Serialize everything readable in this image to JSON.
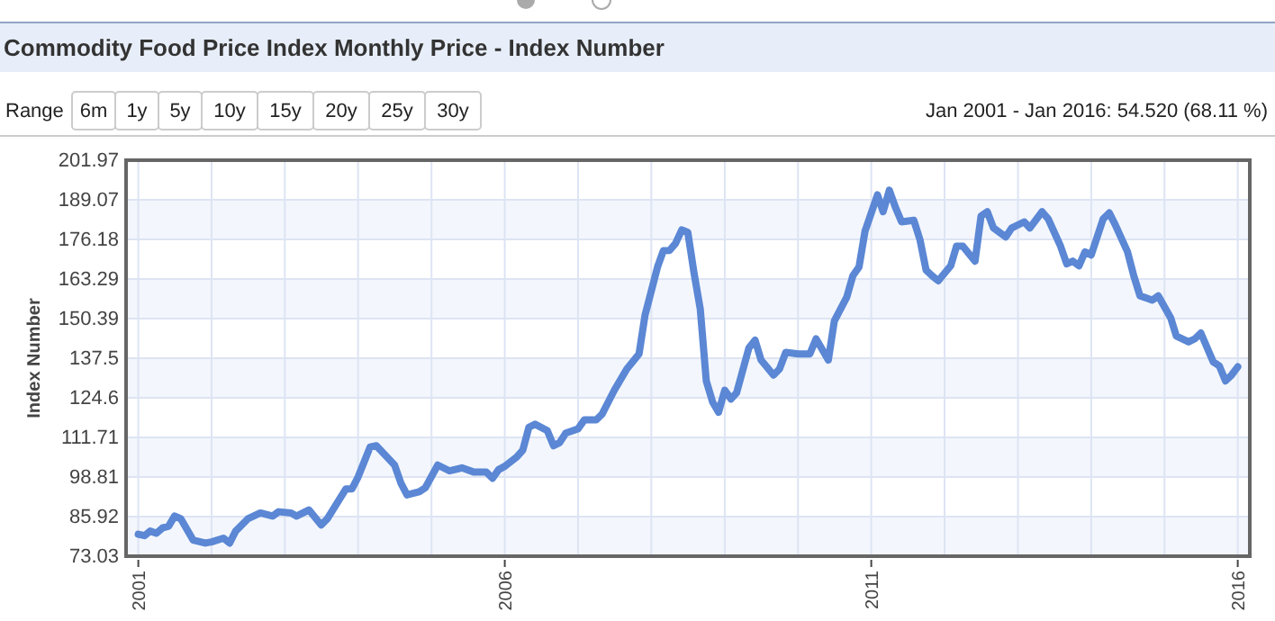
{
  "chart_data": {
    "type": "line",
    "title": "Commodity Food Price Index Monthly Price - Index Number",
    "subtitle": "Jan 2001 - Jan 2016: 54.520 (68.11 %)",
    "ylabel": "Index Number",
    "annotations": [
      "Range",
      "6m",
      "1y",
      "5y",
      "10y",
      "15y",
      "20y",
      "25y",
      "30y"
    ],
    "xlim": [
      "2000-11",
      "2016-03"
    ],
    "xticks": [
      {
        "value": "2001",
        "label": "2001"
      },
      {
        "value": "2002",
        "label": null
      },
      {
        "value": "2003",
        "label": null
      },
      {
        "value": "2004",
        "label": null
      },
      {
        "value": "2005",
        "label": null
      },
      {
        "value": "2006",
        "label": "2006"
      },
      {
        "value": "2007",
        "label": null
      },
      {
        "value": "2008",
        "label": null
      },
      {
        "value": "2009",
        "label": null
      },
      {
        "value": "2010",
        "label": null
      },
      {
        "value": "2011",
        "label": "2011"
      },
      {
        "value": "2012",
        "label": null
      },
      {
        "value": "2013",
        "label": null
      },
      {
        "value": "2014",
        "label": null
      },
      {
        "value": "2015",
        "label": null
      },
      {
        "value": "2016",
        "label": "2016"
      }
    ],
    "ylim": [
      73.03,
      201.97
    ],
    "yticks": [
      73.03,
      85.92,
      98.81,
      111.71,
      124.6,
      137.5,
      150.39,
      163.29,
      176.18,
      189.07,
      201.97
    ],
    "grid": true,
    "marker": "none",
    "line_style": "solid",
    "series": [
      {
        "color": "#5b87d4",
        "x": [
          "2001-01",
          "2001-02",
          "2001-03",
          "2001-04",
          "2001-05",
          "2001-06",
          "2001-07",
          "2001-08",
          "2001-10",
          "2001-12",
          "2002-01",
          "2002-03",
          "2002-04",
          "2002-05",
          "2002-07",
          "2002-09",
          "2002-11",
          "2002-12",
          "2003-02",
          "2003-03",
          "2003-05",
          "2003-07",
          "2003-08",
          "2003-11",
          "2003-12",
          "2004-01",
          "2004-03",
          "2004-04",
          "2004-07",
          "2004-08",
          "2004-09",
          "2004-11",
          "2004-12",
          "2005-02",
          "2005-04",
          "2005-06",
          "2005-08",
          "2005-10",
          "2005-11",
          "2005-12",
          "2006-01",
          "2006-03",
          "2006-04",
          "2006-05",
          "2006-06",
          "2006-08",
          "2006-09",
          "2006-10",
          "2006-11",
          "2007-01",
          "2007-02",
          "2007-04",
          "2007-05",
          "2007-06",
          "2007-07",
          "2007-09",
          "2007-11",
          "2007-12",
          "2008-02",
          "2008-03",
          "2008-04",
          "2008-05",
          "2008-06",
          "2008-07",
          "2008-08",
          "2008-09",
          "2008-10",
          "2008-11",
          "2008-12",
          "2009-01",
          "2009-02",
          "2009-03",
          "2009-05",
          "2009-06",
          "2009-07",
          "2009-09",
          "2009-10",
          "2009-11",
          "2010-01",
          "2010-03",
          "2010-04",
          "2010-06",
          "2010-07",
          "2010-09",
          "2010-10",
          "2010-11",
          "2010-12",
          "2011-01",
          "2011-02",
          "2011-03",
          "2011-04",
          "2011-05",
          "2011-06",
          "2011-08",
          "2011-09",
          "2011-10",
          "2011-11",
          "2011-12",
          "2012-02",
          "2012-03",
          "2012-04",
          "2012-06",
          "2012-07",
          "2012-08",
          "2012-09",
          "2012-11",
          "2012-12",
          "2013-02",
          "2013-03",
          "2013-05",
          "2013-06",
          "2013-08",
          "2013-09",
          "2013-10",
          "2013-11",
          "2013-12",
          "2014-01",
          "2014-03",
          "2014-04",
          "2014-05",
          "2014-07",
          "2014-08",
          "2014-09",
          "2014-11",
          "2014-12",
          "2015-02",
          "2015-03",
          "2015-05",
          "2015-06",
          "2015-07",
          "2015-09",
          "2015-10",
          "2015-11",
          "2015-12",
          "2016-01"
        ],
        "values": [
          80.2,
          79.7,
          81.2,
          80.5,
          82.2,
          82.8,
          86.1,
          85.2,
          78.3,
          77.3,
          77.7,
          78.9,
          77.3,
          81.2,
          85.2,
          87.1,
          86.1,
          87.5,
          87.1,
          86.1,
          88.1,
          83.2,
          85.2,
          94.9,
          94.9,
          98.8,
          108.6,
          109.0,
          102.7,
          96.9,
          93.0,
          94.0,
          95.3,
          102.7,
          100.8,
          101.8,
          100.4,
          100.4,
          98.4,
          101.2,
          102.3,
          105.3,
          107.6,
          115.0,
          116.0,
          113.9,
          109.0,
          110.0,
          113.1,
          114.5,
          117.4,
          117.4,
          119.3,
          123.3,
          127.1,
          134.0,
          138.9,
          151.6,
          167.2,
          172.5,
          172.6,
          174.9,
          179.3,
          178.5,
          165.2,
          153.5,
          130.1,
          123.3,
          119.9,
          127.1,
          124.2,
          126.2,
          140.8,
          143.4,
          136.9,
          132.0,
          134.0,
          139.4,
          138.9,
          138.9,
          143.8,
          136.9,
          149.6,
          157.4,
          164.3,
          167.2,
          178.9,
          184.8,
          190.7,
          185.2,
          192.2,
          186.7,
          181.9,
          182.4,
          176.0,
          166.2,
          164.3,
          162.7,
          167.6,
          174.0,
          174.0,
          169.1,
          183.8,
          185.2,
          179.9,
          177.0,
          179.9,
          181.9,
          179.9,
          185.2,
          182.8,
          174.0,
          168.2,
          169.1,
          167.6,
          172.1,
          171.1,
          182.8,
          184.8,
          180.9,
          172.1,
          164.3,
          157.8,
          156.4,
          157.8,
          150.6,
          144.7,
          142.8,
          143.8,
          145.7,
          136.3,
          135.0,
          130.1,
          132.0,
          134.7
        ]
      }
    ]
  }
}
